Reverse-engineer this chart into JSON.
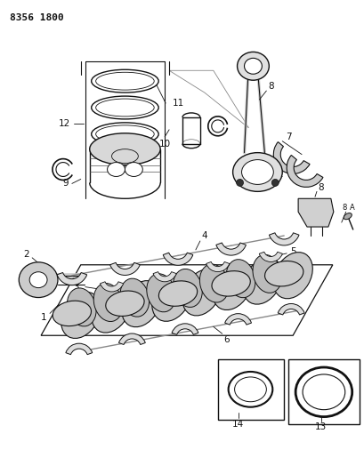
{
  "bg_color": "#ffffff",
  "line_color": "#000000",
  "header_text": "8356 1800",
  "fig_width": 4.1,
  "fig_height": 5.33,
  "dpi": 100
}
